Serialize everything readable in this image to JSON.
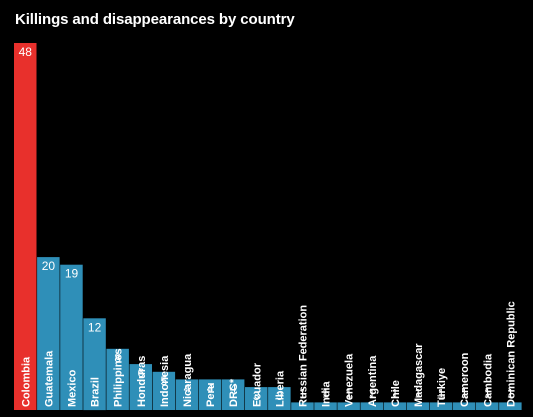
{
  "title": "Killings and disappearances by country",
  "colors": {
    "background": "#000000",
    "highlight": "#e8302c",
    "bar": "#2f8fb8",
    "text": "#ffffff"
  },
  "chart_data": {
    "type": "bar",
    "title": "Killings and disappearances by country",
    "xlabel": "",
    "ylabel": "",
    "ylim": [
      0,
      48
    ],
    "grid": false,
    "legend": "none",
    "categories": [
      "Colombia",
      "Guatemala",
      "Mexico",
      "Brazil",
      "Philippines",
      "Honduras",
      "Indonesia",
      "Nicaragua",
      "Peru",
      "DRC*",
      "Ecuador",
      "Liberia",
      "Russian Federation",
      "India",
      "Venezuela",
      "Argentina",
      "Chile",
      "Madagascar",
      "Türkiye",
      "Cameroon",
      "Cambodia",
      "Dominican Republic"
    ],
    "values": [
      48,
      20,
      19,
      12,
      8,
      6,
      5,
      4,
      4,
      4,
      3,
      3,
      1,
      1,
      1,
      1,
      1,
      1,
      1,
      1,
      1,
      1
    ],
    "highlight_index": 0
  }
}
